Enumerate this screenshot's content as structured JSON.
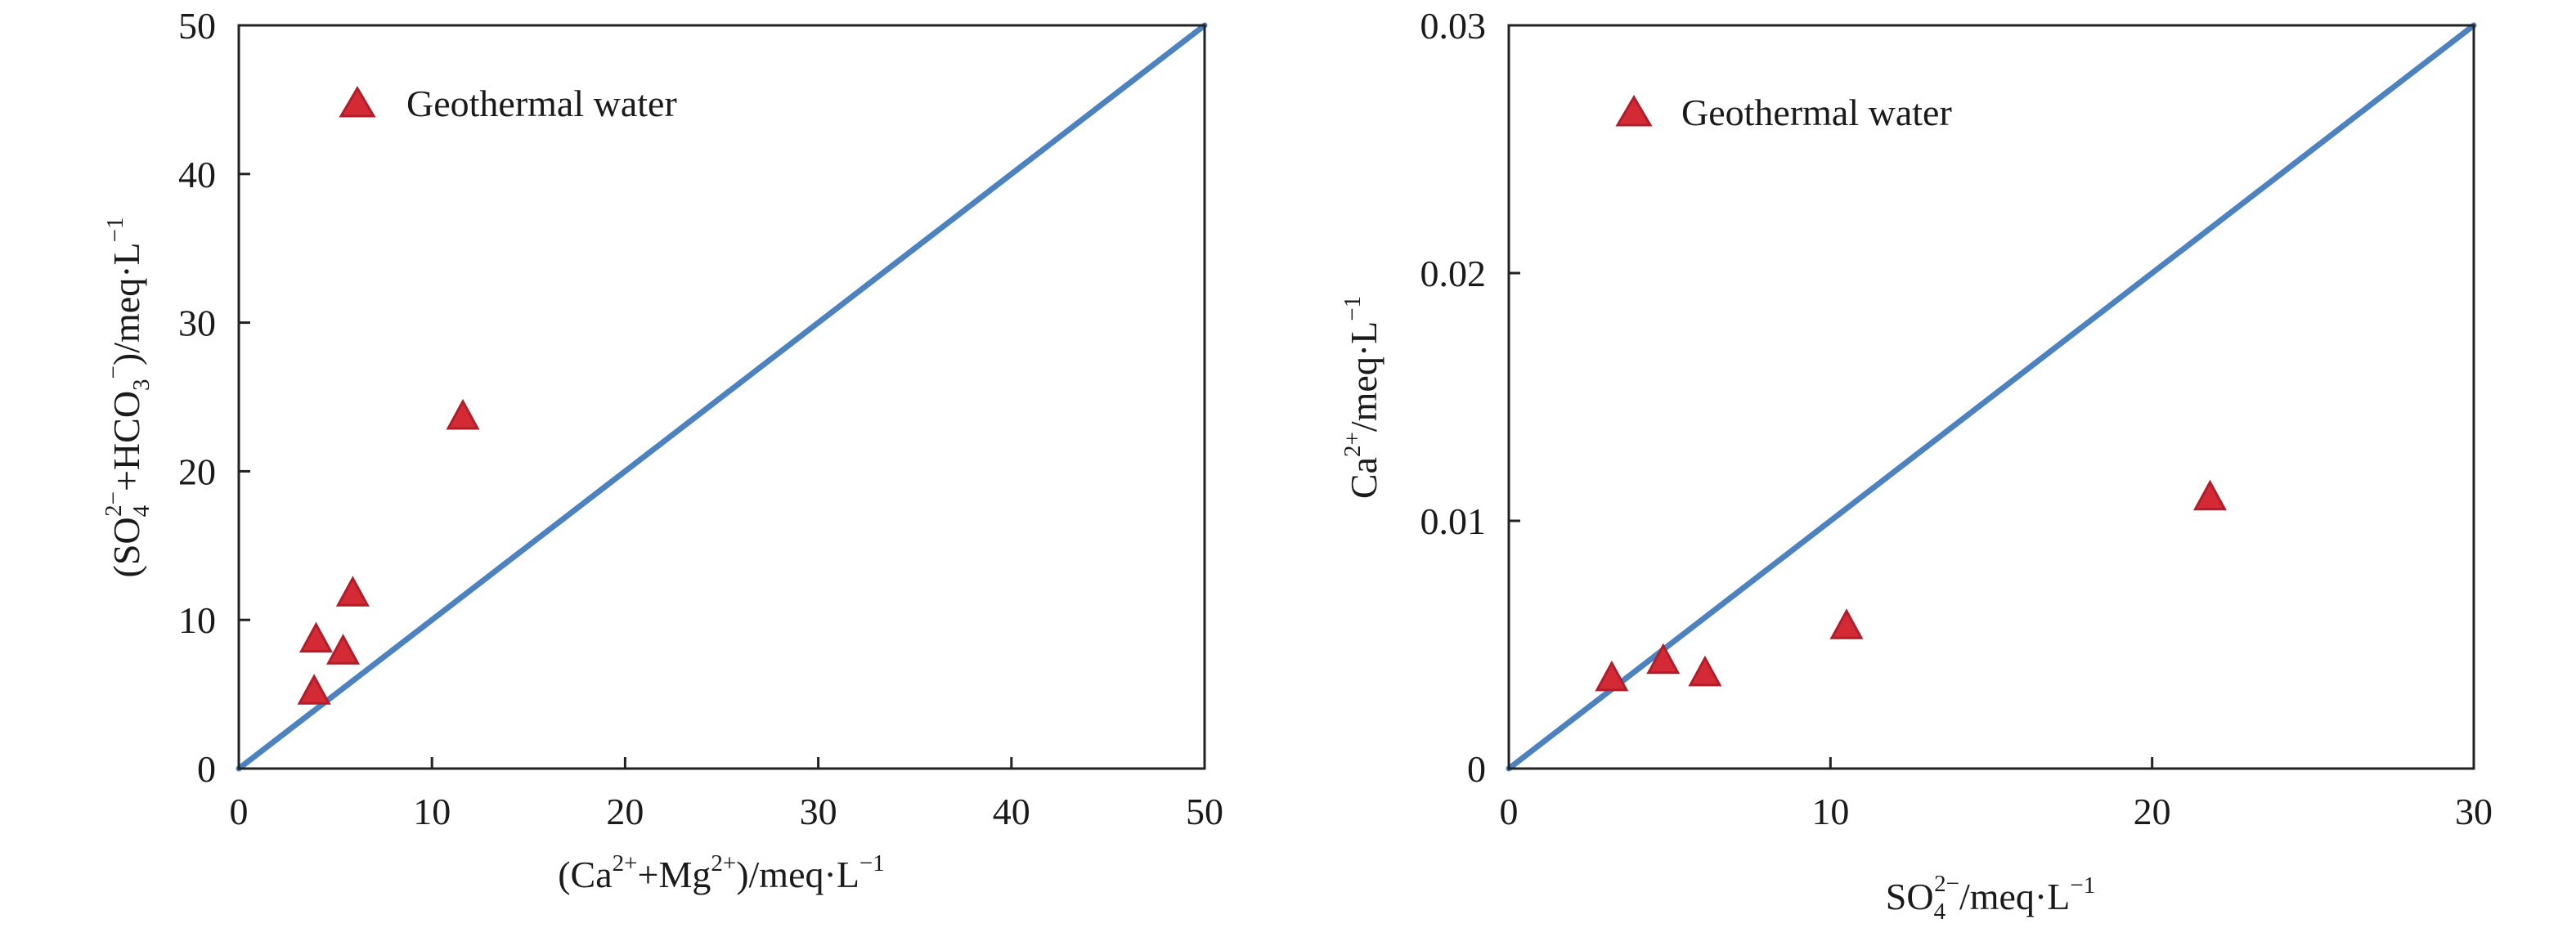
{
  "colors": {
    "marker": "#d42a36",
    "marker_edge": "#b01e2a",
    "ref_line": "#4b82bf",
    "axis": "#222222"
  },
  "chart_data": [
    {
      "type": "scatter",
      "legend": "Geothermal water",
      "legend_position": "top-left",
      "marker": "triangle-up",
      "xlim": [
        0,
        50
      ],
      "ylim": [
        0,
        50
      ],
      "xticks": [
        "0",
        "10",
        "20",
        "30",
        "40",
        "50"
      ],
      "yticks": [
        "0",
        "10",
        "20",
        "30",
        "40",
        "50"
      ],
      "xlabel": {
        "pre": "(Ca",
        "sup1": "2+",
        "mid": "+Mg",
        "sup2": "2+",
        "post": ")/meq·L",
        "sup3": "−1"
      },
      "ylabel": {
        "pre": "(SO",
        "sub1": "4",
        "sup1": "2−",
        "mid": "+HCO",
        "sub2": "3",
        "sup2": "−",
        "post": ")/meq·L",
        "sup3": "−1"
      },
      "reference_line": "1:1",
      "grid": false,
      "points": [
        {
          "x": 3.9,
          "y": 5.1
        },
        {
          "x": 4.0,
          "y": 8.6
        },
        {
          "x": 5.4,
          "y": 7.8
        },
        {
          "x": 5.9,
          "y": 11.7
        },
        {
          "x": 11.6,
          "y": 23.6
        }
      ]
    },
    {
      "type": "scatter",
      "legend": "Geothermal water",
      "legend_position": "top-left",
      "marker": "triangle-up",
      "xlim": [
        0,
        30
      ],
      "ylim": [
        0,
        0.03
      ],
      "xticks": [
        "0",
        "10",
        "20",
        "30"
      ],
      "yticks": [
        "0",
        "0.01",
        "0.02",
        "0.03"
      ],
      "xlabel": {
        "pre": "SO",
        "sub1": "4",
        "sup1": "2−",
        "post": "/meq·L",
        "sup3": "−1"
      },
      "ylabel": {
        "pre": "Ca",
        "sup1": "2+",
        "post": "/meq·L",
        "sup3": "−1"
      },
      "reference_line": "y = 0.001x",
      "grid": false,
      "points": [
        {
          "x": 3.2,
          "y": 0.0036
        },
        {
          "x": 4.8,
          "y": 0.0043
        },
        {
          "x": 6.1,
          "y": 0.0038
        },
        {
          "x": 10.5,
          "y": 0.0057
        },
        {
          "x": 21.8,
          "y": 0.0109
        }
      ]
    }
  ]
}
